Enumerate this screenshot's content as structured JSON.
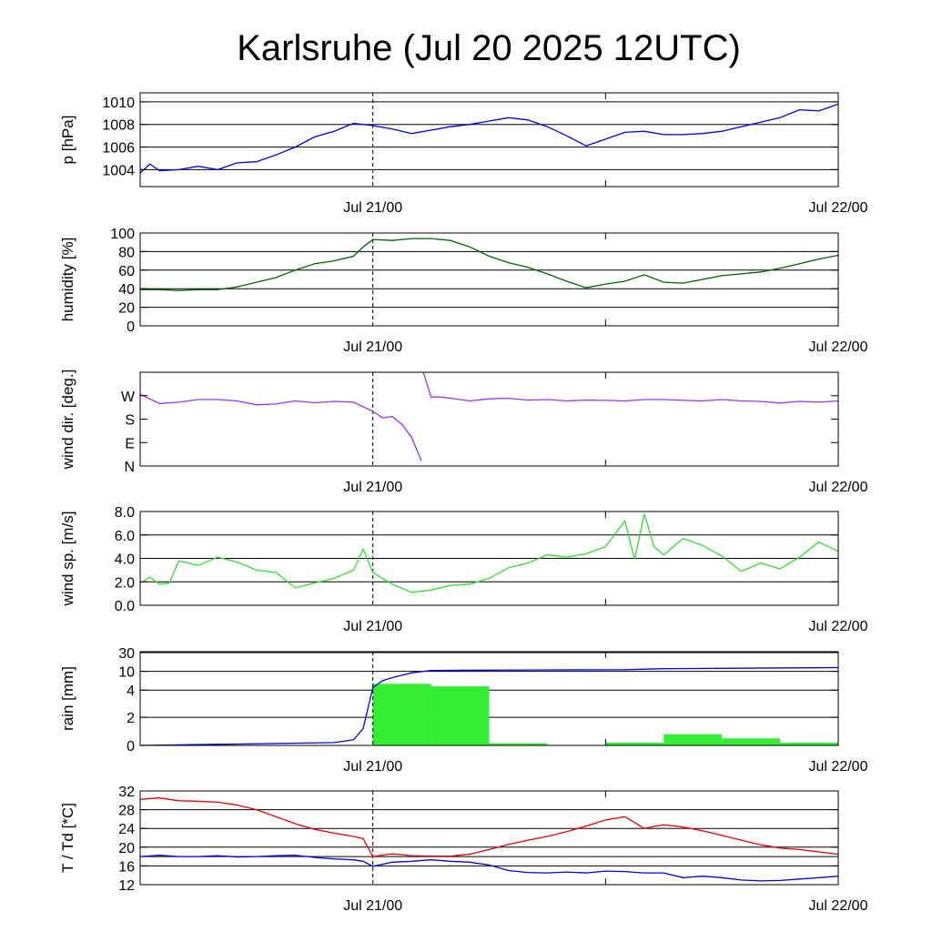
{
  "title": "Karlsruhe (Jul 20 2025 12UTC)",
  "x_tick_labels": [
    "Jul 21/00",
    "Jul 22/00"
  ],
  "chart_data": [
    {
      "id": "pressure",
      "type": "line",
      "ylabel": "p [hPa]",
      "ylim": [
        1002.5,
        1010.8
      ],
      "yticks": [
        1004,
        1006,
        1008,
        1010
      ],
      "ytick_labels": [
        "1004",
        "1006",
        "1008",
        "1010"
      ],
      "grid": true,
      "x_hours": [
        0,
        0.5,
        1,
        2,
        3,
        4,
        5,
        6,
        7,
        8,
        9,
        10,
        11,
        12,
        13,
        14,
        15,
        16,
        17,
        18,
        19,
        20,
        21,
        22,
        23,
        24,
        25,
        26,
        27,
        28,
        29,
        30,
        31,
        32,
        33,
        34,
        35,
        36
      ],
      "series": [
        {
          "color": "#0000ee",
          "values": [
            1003.7,
            1004.5,
            1003.9,
            1004.0,
            1004.3,
            1004.0,
            1004.6,
            1004.7,
            1005.3,
            1006.0,
            1006.9,
            1007.4,
            1008.1,
            1007.9,
            1007.6,
            1007.2,
            1007.5,
            1007.8,
            1008.0,
            1008.3,
            1008.6,
            1008.4,
            1007.8,
            1007.0,
            1006.1,
            1006.7,
            1007.3,
            1007.4,
            1007.1,
            1007.1,
            1007.2,
            1007.4,
            1007.8,
            1008.2,
            1008.6,
            1009.3,
            1009.2,
            1009.8
          ]
        }
      ]
    },
    {
      "id": "humidity",
      "type": "line",
      "ylabel": "humidity [%]",
      "ylim": [
        0,
        100
      ],
      "yticks": [
        0,
        20,
        40,
        60,
        80,
        100
      ],
      "ytick_labels": [
        "0",
        "20",
        "40",
        "60",
        "80",
        "100"
      ],
      "grid": true,
      "x_hours": [
        0,
        1,
        2,
        3,
        4,
        5,
        6,
        7,
        8,
        9,
        10,
        11,
        11.5,
        12,
        13,
        14,
        15,
        16,
        17,
        18,
        19,
        20,
        21,
        22,
        23,
        24,
        25,
        26,
        27,
        28,
        29,
        30,
        31,
        32,
        33,
        34,
        35,
        36
      ],
      "series": [
        {
          "color": "#006400",
          "values": [
            39,
            39,
            38,
            39,
            39,
            42,
            47,
            52,
            60,
            67,
            70,
            75,
            85,
            93,
            92,
            94,
            94,
            92,
            85,
            75,
            68,
            63,
            56,
            48,
            41,
            45,
            48,
            55,
            47,
            46,
            50,
            54,
            56,
            58,
            62,
            67,
            72,
            76
          ]
        }
      ]
    },
    {
      "id": "wind-direction",
      "type": "line",
      "ylabel": "wind dir. [deg.]",
      "ylim": [
        0,
        360
      ],
      "yticks": [
        0,
        90,
        180,
        270
      ],
      "ytick_labels": [
        "N",
        "E",
        "S",
        "W"
      ],
      "grid": false,
      "x_hours": [
        0,
        1,
        2,
        3,
        4,
        5,
        6,
        7,
        8,
        9,
        10,
        11,
        12,
        12.5,
        13,
        13.5,
        14,
        14.5,
        14.6,
        15,
        15.5,
        16,
        17,
        18,
        19,
        20,
        21,
        22,
        23,
        24,
        25,
        26,
        27,
        28,
        29,
        30,
        31,
        32,
        33,
        34,
        35,
        36
      ],
      "series": [
        {
          "color": "#9933ff",
          "values": [
            275,
            240,
            245,
            255,
            255,
            250,
            235,
            238,
            250,
            243,
            248,
            245,
            210,
            185,
            190,
            160,
            110,
            20,
            360,
            265,
            265,
            260,
            250,
            258,
            260,
            253,
            255,
            250,
            253,
            252,
            250,
            255,
            255,
            252,
            250,
            255,
            250,
            248,
            242,
            248,
            245,
            250
          ]
        }
      ]
    },
    {
      "id": "wind-speed",
      "type": "line",
      "ylabel": "wind sp. [m/s]",
      "ylim": [
        0,
        8.0
      ],
      "yticks": [
        0,
        2,
        4,
        6,
        8
      ],
      "ytick_labels": [
        "0.0",
        "2.0",
        "4.0",
        "6.0",
        "8.0"
      ],
      "grid": true,
      "x_hours": [
        0,
        0.5,
        1,
        1.5,
        2,
        3,
        4,
        5,
        6,
        7,
        8,
        9,
        10,
        11,
        11.5,
        12,
        12.5,
        13,
        14,
        15,
        16,
        17,
        18,
        19,
        20,
        21,
        22,
        23,
        24,
        25,
        25.5,
        26,
        26.5,
        27,
        28,
        29,
        30,
        31,
        32,
        33,
        34,
        35,
        36
      ],
      "series": [
        {
          "color": "#33dd33",
          "values": [
            1.9,
            2.4,
            1.8,
            1.9,
            3.8,
            3.4,
            4.1,
            3.7,
            3.0,
            2.8,
            1.5,
            1.9,
            2.3,
            3.0,
            4.8,
            2.8,
            2.3,
            1.8,
            1.1,
            1.3,
            1.7,
            1.8,
            2.3,
            3.2,
            3.6,
            4.3,
            4.1,
            4.4,
            5.0,
            7.2,
            3.9,
            7.8,
            5.0,
            4.3,
            5.7,
            5.1,
            4.2,
            2.9,
            3.6,
            3.1,
            4.1,
            5.4,
            4.6
          ]
        }
      ]
    },
    {
      "id": "rain",
      "type": "bar+line",
      "ylabel": "rain [mm]",
      "ylim": [
        0,
        30
      ],
      "yticks": [
        0,
        2,
        4,
        10,
        30
      ],
      "ytick_labels": [
        "0",
        "2",
        "4",
        "10",
        "30"
      ],
      "grid": true,
      "bar_edges_hours": [
        0,
        3,
        6,
        9,
        12,
        15,
        18,
        21,
        24,
        27,
        30,
        33,
        36
      ],
      "bar_values_mm": [
        0,
        0,
        0,
        0,
        6.0,
        5.2,
        0.15,
        0,
        0.2,
        0.8,
        0.5,
        0.2
      ],
      "bar_color": "#33ee33",
      "x_hours": [
        0,
        5,
        10,
        11,
        11.5,
        12,
        12.5,
        13,
        14,
        15,
        20,
        25,
        27,
        30,
        36
      ],
      "series": [
        {
          "color": "#0000ee",
          "values": [
            0,
            0.1,
            0.2,
            0.4,
            1.2,
            4.8,
            7.0,
            8.0,
            9.5,
            11.0,
            11.5,
            11.8,
            12.8,
            13.2,
            14.0
          ]
        }
      ]
    },
    {
      "id": "temperature-dewpoint",
      "type": "line",
      "ylabel": "T / Td [*C]",
      "ylim": [
        12,
        32
      ],
      "yticks": [
        12,
        16,
        20,
        24,
        28,
        32
      ],
      "ytick_labels": [
        "12",
        "16",
        "20",
        "24",
        "28",
        "32"
      ],
      "extra_gridlines": [
        18
      ],
      "grid": true,
      "x_hours": [
        0,
        1,
        2,
        3,
        4,
        5,
        6,
        7,
        8,
        9,
        10,
        11,
        11.5,
        12,
        13,
        14,
        15,
        16,
        17,
        18,
        19,
        20,
        21,
        22,
        23,
        24,
        25,
        26,
        27,
        28,
        29,
        30,
        31,
        32,
        33,
        34,
        35,
        36
      ],
      "series": [
        {
          "color": "#ee0000",
          "values": [
            30.2,
            30.5,
            29.9,
            29.8,
            29.6,
            29.0,
            28.0,
            26.5,
            25.0,
            23.8,
            23.0,
            22.3,
            21.8,
            18.0,
            18.6,
            18.2,
            18.1,
            18.1,
            18.5,
            19.5,
            20.6,
            21.5,
            22.3,
            23.3,
            24.5,
            25.8,
            26.5,
            24.0,
            24.8,
            24.3,
            23.5,
            22.5,
            21.5,
            20.5,
            19.8,
            19.5,
            19.0,
            18.5
          ]
        },
        {
          "color": "#0000ee",
          "values": [
            18.0,
            18.3,
            18.0,
            18.0,
            18.2,
            17.9,
            18.0,
            18.2,
            18.3,
            17.8,
            17.5,
            17.3,
            17.0,
            15.9,
            16.8,
            17.0,
            17.3,
            17.0,
            16.8,
            16.2,
            15.0,
            14.6,
            14.5,
            14.7,
            14.5,
            14.9,
            14.8,
            14.5,
            14.5,
            13.5,
            13.8,
            13.5,
            13.0,
            12.8,
            12.9,
            13.2,
            13.5,
            13.8
          ]
        }
      ]
    }
  ]
}
